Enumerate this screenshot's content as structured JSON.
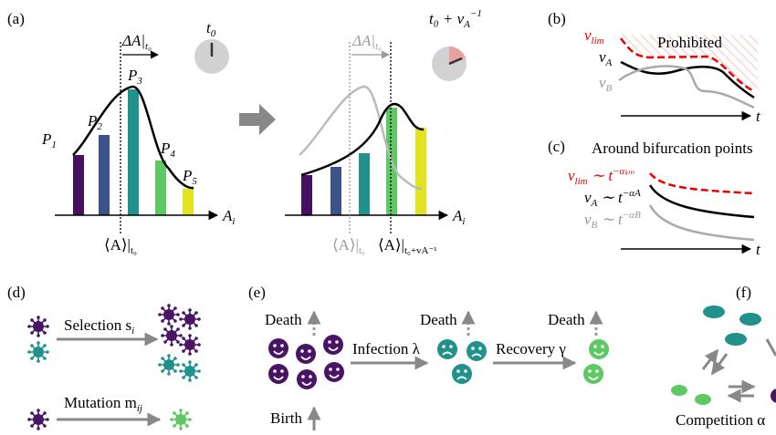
{
  "labels": {
    "a": "(a)",
    "b": "(b)",
    "c": "(c)",
    "d": "(d)",
    "e": "(e)",
    "f": "(f)"
  },
  "panel_a": {
    "frequencies": [
      {
        "letter": "P",
        "index": "1"
      },
      {
        "letter": "P",
        "index": "2"
      },
      {
        "letter": "P",
        "index": "3"
      },
      {
        "letter": "P",
        "index": "4"
      },
      {
        "letter": "P",
        "index": "5"
      }
    ],
    "delta_left": {
      "main": "ΔA|",
      "sub": "t₀"
    },
    "clock_left": {
      "main": "t",
      "sub": "0"
    },
    "axis_left": {
      "main": "A",
      "sub": "i"
    },
    "mean_left": {
      "main": "⟨A⟩|",
      "sub": "t₀"
    },
    "delta_right": {
      "main": "ΔA|",
      "sub": "t₀"
    },
    "clock_right": {
      "main": "t₀ + v",
      "sub": "A",
      "sup": "−1"
    },
    "axis_right": {
      "main": "A",
      "sub": "i"
    },
    "mean_right_old": {
      "main": "⟨A⟩|",
      "sub": "t₀"
    },
    "mean_right_new": {
      "main": "⟨A⟩|",
      "sub": "t₀+vA⁻¹"
    }
  },
  "panel_b": {
    "v_lim": {
      "main": "v",
      "sub": "lim"
    },
    "v_A": {
      "main": "v",
      "sub": "A"
    },
    "v_B": {
      "main": "v",
      "sub": "B"
    },
    "region": "Prohibited",
    "axis": "t"
  },
  "panel_c": {
    "title": "Around bifurcation points",
    "v_lim": {
      "main": "v",
      "sub": "lim",
      "rel": " ∼ t",
      "sup": "−αₗᵢₘ"
    },
    "v_A": {
      "main": "v",
      "sub": "A",
      "rel": " ∼ t",
      "sup": "−αA"
    },
    "v_B": {
      "main": "v",
      "sub": "B",
      "rel": " ∼ t",
      "sup": "−αB"
    },
    "axis": "t"
  },
  "panel_d": {
    "selection": {
      "main": "Selection s",
      "sub": "i"
    },
    "mutation": {
      "main": "Mutation m",
      "sub": "ij"
    }
  },
  "panel_e": {
    "deaths": [
      "Death",
      "Death",
      "Death"
    ],
    "birth": "Birth",
    "infection": "Infection λ",
    "recovery": "Recovery γ"
  },
  "panel_f": {
    "competition": "Competition α"
  }
}
